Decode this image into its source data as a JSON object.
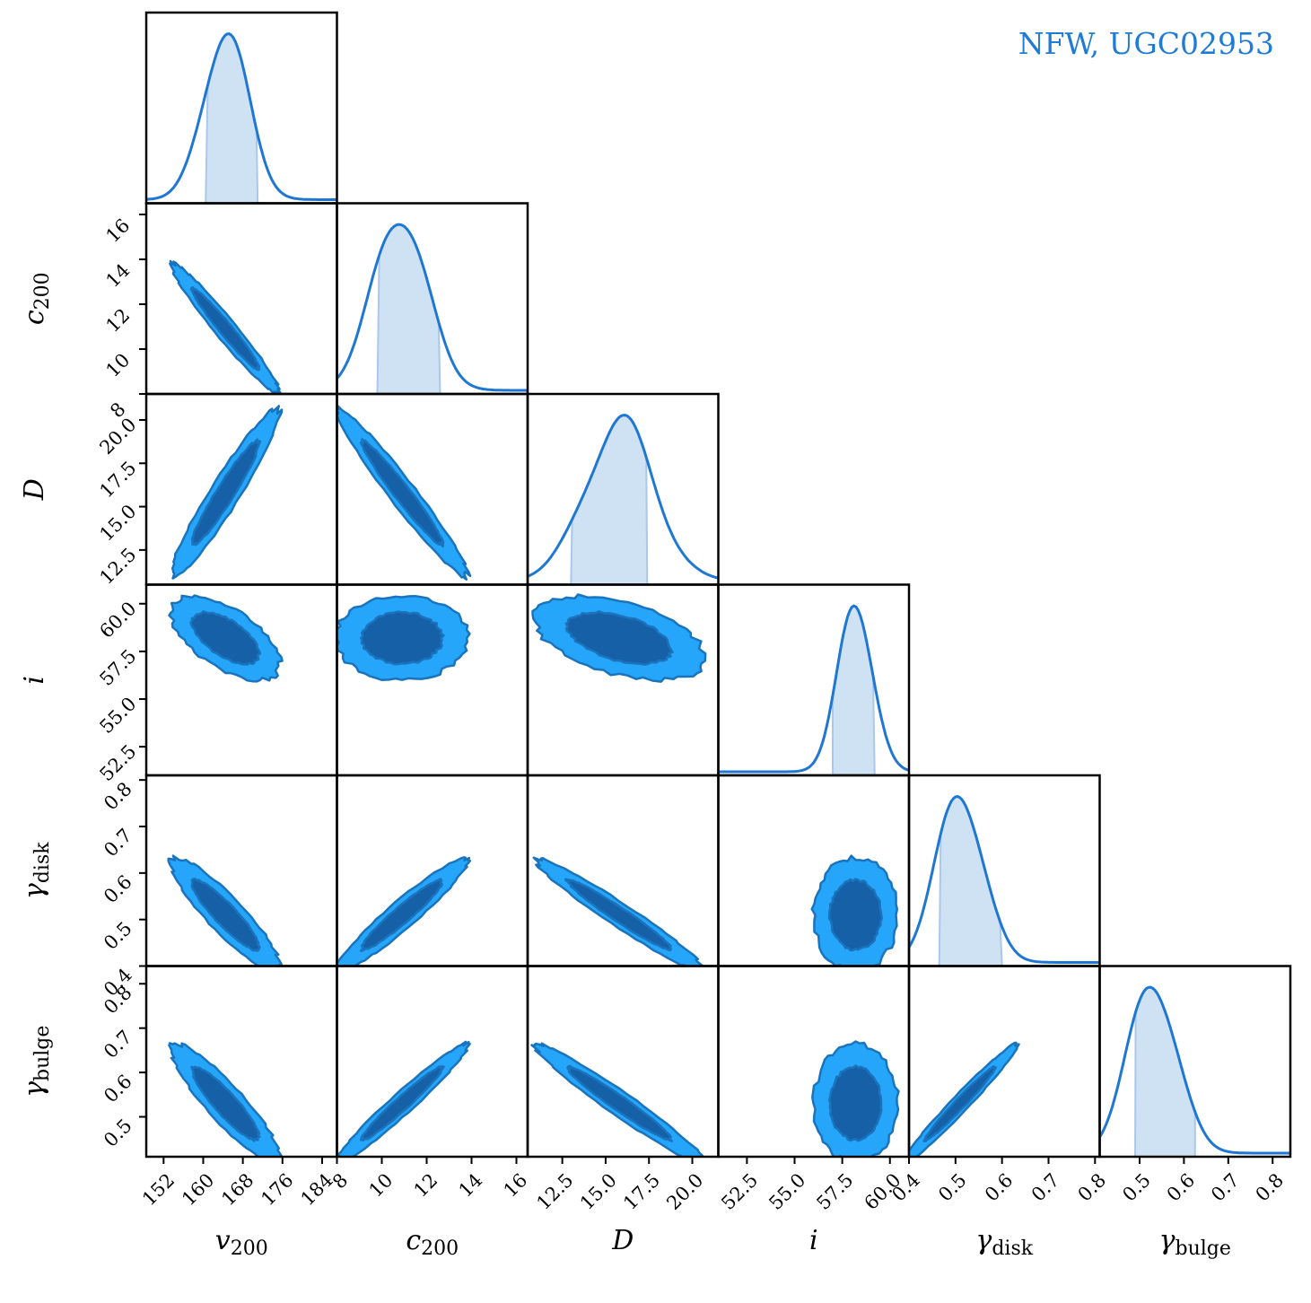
{
  "chart_data": {
    "type": "corner",
    "annotation": "NFW, UGC02953",
    "colors": {
      "line": "#1f77d4",
      "band": "#cfe2f4",
      "band_edge": "#a9c8ec",
      "contour_outer": "#26a6fa",
      "contour_inner": "#1660a8",
      "contour_edge": "#1a74bd"
    },
    "params": [
      {
        "key": "v200",
        "label": "v",
        "sub": "200",
        "range": [
          148.5,
          187
        ],
        "ticks": [
          152,
          160,
          168,
          176,
          184
        ],
        "tick_labels": [
          "152",
          "160",
          "168",
          "176",
          "184"
        ],
        "median": 164.5,
        "ci": [
          160.5,
          171.0
        ],
        "mode": 164.5,
        "sd": 4.5
      },
      {
        "key": "c200",
        "label": "c",
        "sub": "200",
        "range": [
          8,
          16.5
        ],
        "ticks": [
          8,
          10,
          12,
          14,
          16
        ],
        "tick_labels": [
          "8",
          "10",
          "12",
          "14",
          "16"
        ],
        "median": 10.9,
        "ci": [
          9.8,
          12.6
        ],
        "mode": 10.8,
        "sd": 1.2
      },
      {
        "key": "D",
        "label": "D",
        "sub": "",
        "range": [
          10.5,
          21.5
        ],
        "ticks": [
          12.5,
          15.0,
          17.5,
          20.0
        ],
        "tick_labels": [
          "12.5",
          "15.0",
          "17.5",
          "20.0"
        ],
        "median": 15.8,
        "ci": [
          13.0,
          17.4
        ],
        "mode": 15.8,
        "sd": 2.0
      },
      {
        "key": "i",
        "label": "i",
        "sub": "",
        "range": [
          51.0,
          61.0
        ],
        "ticks": [
          52.5,
          55.0,
          57.5,
          60.0
        ],
        "tick_labels": [
          "52.5",
          "55.0",
          "57.5",
          "60.0"
        ],
        "median": 58.2,
        "ci": [
          57.0,
          59.2
        ],
        "mode": 58.2,
        "sd": 0.9
      },
      {
        "key": "gdisk",
        "label": "γ",
        "sub": "disk",
        "range": [
          0.4,
          0.81
        ],
        "ticks": [
          0.4,
          0.5,
          0.6,
          0.7,
          0.8
        ],
        "tick_labels": [
          "0.4",
          "0.5",
          "0.6",
          "0.7",
          "0.8"
        ],
        "median": 0.51,
        "ci": [
          0.465,
          0.6
        ],
        "mode": 0.51,
        "sd": 0.05
      },
      {
        "key": "gbulge",
        "label": "γ",
        "sub": "bulge",
        "range": [
          0.41,
          0.84
        ],
        "ticks": [
          0.5,
          0.6,
          0.7,
          0.8
        ],
        "tick_labels": [
          "0.5",
          "0.6",
          "0.7",
          "0.8"
        ],
        "median": 0.53,
        "ci": [
          0.49,
          0.625
        ],
        "mode": 0.53,
        "sd": 0.055
      }
    ],
    "correlations": [
      [
        1.0,
        -0.97,
        0.95,
        -0.6,
        -0.9,
        -0.9
      ],
      [
        -0.97,
        1.0,
        -0.97,
        0.0,
        0.95,
        0.97
      ],
      [
        0.95,
        -0.97,
        1.0,
        -0.45,
        -0.97,
        -0.97
      ],
      [
        -0.6,
        0.0,
        -0.45,
        1.0,
        0.0,
        0.0
      ],
      [
        -0.9,
        0.95,
        -0.97,
        0.0,
        1.0,
        0.98
      ],
      [
        -0.9,
        0.97,
        -0.97,
        0.0,
        0.98,
        1.0
      ]
    ]
  }
}
